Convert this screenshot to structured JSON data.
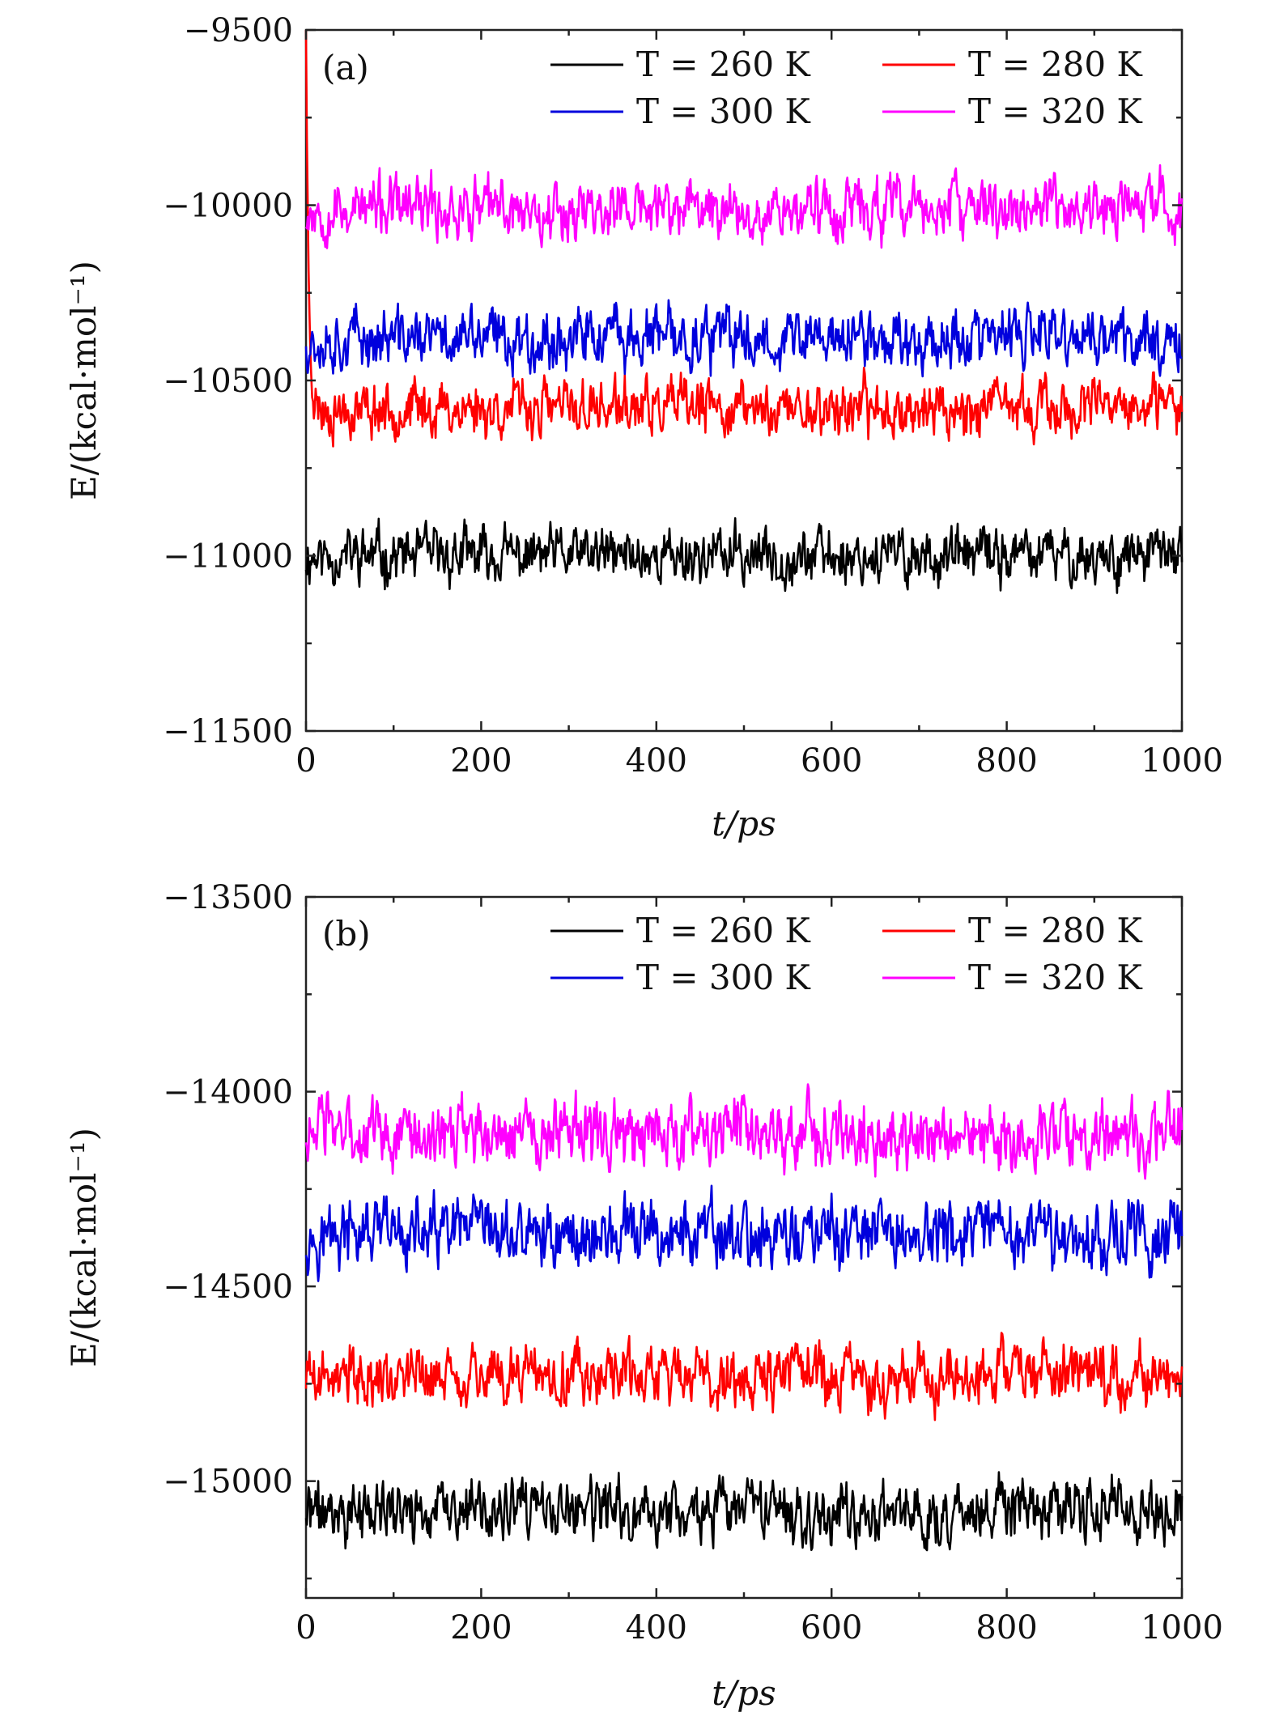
{
  "chart_data": [
    {
      "type": "line",
      "panel_label": "(a)",
      "xlabel": "t/ps",
      "ylabel": "E/(kcal·mol⁻¹)",
      "xlim": [
        0,
        1000
      ],
      "ylim": [
        -11500,
        -9500
      ],
      "x_ticks": [
        0,
        200,
        400,
        600,
        800,
        1000
      ],
      "x_tick_labels": [
        "0",
        "200",
        "400",
        "600",
        "800",
        "1000"
      ],
      "y_ticks": [
        -9500,
        -10000,
        -10500,
        -11000,
        -11500
      ],
      "y_tick_labels": [
        "−9500",
        "−10000",
        "−10500",
        "−11000",
        "−11500"
      ],
      "legend_position": "top-right",
      "series": [
        {
          "name": "T = 260 K",
          "color": "#000000",
          "mean": -11000,
          "amplitude": 55,
          "seed": 11,
          "initial_spike": null
        },
        {
          "name": "T = 280 K",
          "color": "#ff0000",
          "mean": -10580,
          "amplitude": 55,
          "seed": 23,
          "initial_spike": -9500
        },
        {
          "name": "T = 300 K",
          "color": "#0000dd",
          "mean": -10380,
          "amplitude": 60,
          "seed": 37,
          "initial_spike": null
        },
        {
          "name": "T = 320 K",
          "color": "#ff00ff",
          "mean": -10010,
          "amplitude": 60,
          "seed": 53,
          "initial_spike": null
        }
      ]
    },
    {
      "type": "line",
      "panel_label": "(b)",
      "xlabel": "t/ps",
      "ylabel": "E/(kcal·mol⁻¹)",
      "xlim": [
        0,
        1000
      ],
      "ylim": [
        -15300,
        -13500
      ],
      "x_ticks": [
        0,
        200,
        400,
        600,
        800,
        1000
      ],
      "x_tick_labels": [
        "0",
        "200",
        "400",
        "600",
        "800",
        "1000"
      ],
      "y_ticks": [
        -13500,
        -14000,
        -14500,
        -15000
      ],
      "y_tick_labels": [
        "−13500",
        "−14000",
        "−14500",
        "−15000"
      ],
      "legend_position": "top-right",
      "series": [
        {
          "name": "T = 260 K",
          "color": "#000000",
          "mean": -15080,
          "amplitude": 55,
          "seed": 71,
          "initial_spike": null
        },
        {
          "name": "T = 280 K",
          "color": "#ff0000",
          "mean": -14730,
          "amplitude": 55,
          "seed": 89,
          "initial_spike": null
        },
        {
          "name": "T = 300 K",
          "color": "#0000dd",
          "mean": -14370,
          "amplitude": 60,
          "seed": 97,
          "initial_spike": null
        },
        {
          "name": "T = 320 K",
          "color": "#ff00ff",
          "mean": -14110,
          "amplitude": 60,
          "seed": 103,
          "initial_spike": null
        }
      ]
    }
  ]
}
